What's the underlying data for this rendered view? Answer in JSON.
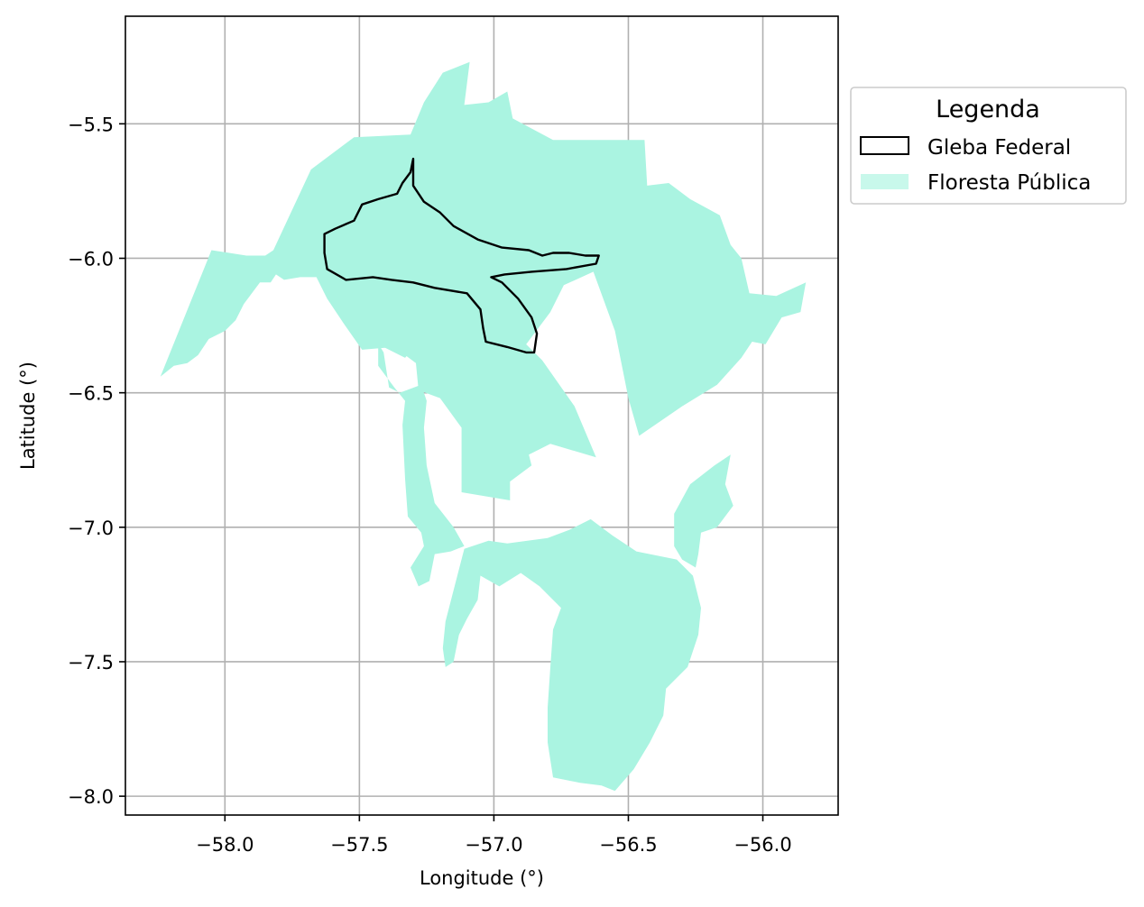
{
  "axes": {
    "xlabel": "Longitude (°)",
    "ylabel": "Latitude (°)",
    "xlim": [
      -58.37,
      -55.72
    ],
    "ylim": [
      -8.07,
      -5.1
    ],
    "xticks": [
      {
        "value": -58.0,
        "label": "−58.0"
      },
      {
        "value": -57.5,
        "label": "−57.5"
      },
      {
        "value": -57.0,
        "label": "−57.0"
      },
      {
        "value": -56.5,
        "label": "−56.5"
      },
      {
        "value": -56.0,
        "label": "−56.0"
      }
    ],
    "yticks": [
      {
        "value": -5.5,
        "label": "−5.5"
      },
      {
        "value": -6.0,
        "label": "−6.0"
      },
      {
        "value": -6.5,
        "label": "−6.5"
      },
      {
        "value": -7.0,
        "label": "−7.0"
      },
      {
        "value": -7.5,
        "label": "−7.5"
      },
      {
        "value": -8.0,
        "label": "−8.0"
      }
    ],
    "grid": true
  },
  "legend": {
    "title": "Legenda",
    "placement": "outside upper right",
    "items": [
      {
        "label": "Gleba Federal",
        "style": "outline",
        "color": "#000000"
      },
      {
        "label": "Floresta Pública",
        "style": "fill",
        "color": "#aaf4e1"
      }
    ]
  },
  "map_data": {
    "layers": [
      {
        "name": "Floresta Pública",
        "fill": "#aaf4e1",
        "polygons": [
          [
            [
              -58.24,
              -6.44
            ],
            [
              -58.05,
              -5.97
            ],
            [
              -57.92,
              -5.99
            ],
            [
              -57.85,
              -5.99
            ],
            [
              -57.82,
              -5.97
            ],
            [
              -57.68,
              -5.67
            ],
            [
              -57.52,
              -5.55
            ],
            [
              -57.31,
              -5.54
            ],
            [
              -57.26,
              -5.42
            ],
            [
              -57.19,
              -5.31
            ],
            [
              -57.09,
              -5.27
            ],
            [
              -57.11,
              -5.43
            ],
            [
              -57.02,
              -5.42
            ],
            [
              -56.95,
              -5.38
            ],
            [
              -56.93,
              -5.48
            ],
            [
              -56.78,
              -5.56
            ],
            [
              -56.44,
              -5.56
            ],
            [
              -56.43,
              -5.73
            ],
            [
              -56.35,
              -5.72
            ],
            [
              -56.27,
              -5.78
            ],
            [
              -56.16,
              -5.84
            ],
            [
              -56.12,
              -5.95
            ],
            [
              -56.08,
              -6.0
            ],
            [
              -56.05,
              -6.13
            ],
            [
              -55.95,
              -6.14
            ],
            [
              -55.84,
              -6.09
            ],
            [
              -55.86,
              -6.2
            ],
            [
              -55.93,
              -6.22
            ],
            [
              -55.99,
              -6.32
            ],
            [
              -56.04,
              -6.31
            ],
            [
              -56.08,
              -6.37
            ],
            [
              -56.17,
              -6.47
            ],
            [
              -56.3,
              -6.55
            ],
            [
              -56.46,
              -6.66
            ],
            [
              -56.5,
              -6.52
            ],
            [
              -56.55,
              -6.27
            ],
            [
              -56.63,
              -6.05
            ],
            [
              -56.74,
              -6.1
            ],
            [
              -56.79,
              -6.2
            ],
            [
              -56.88,
              -6.32
            ],
            [
              -56.82,
              -6.38
            ],
            [
              -56.7,
              -6.55
            ],
            [
              -56.62,
              -6.74
            ],
            [
              -56.79,
              -6.69
            ],
            [
              -56.87,
              -6.73
            ],
            [
              -56.86,
              -6.77
            ],
            [
              -56.94,
              -6.83
            ],
            [
              -56.94,
              -6.9
            ],
            [
              -57.12,
              -6.87
            ],
            [
              -57.12,
              -6.63
            ],
            [
              -57.2,
              -6.52
            ],
            [
              -57.28,
              -6.49
            ],
            [
              -57.29,
              -6.39
            ],
            [
              -57.37,
              -6.33
            ],
            [
              -57.49,
              -6.34
            ],
            [
              -57.56,
              -6.24
            ],
            [
              -57.62,
              -6.15
            ],
            [
              -57.66,
              -6.07
            ],
            [
              -57.72,
              -6.07
            ],
            [
              -57.78,
              -6.08
            ],
            [
              -57.81,
              -6.06
            ],
            [
              -57.83,
              -6.09
            ],
            [
              -57.87,
              -6.09
            ],
            [
              -57.93,
              -6.17
            ],
            [
              -57.96,
              -6.23
            ],
            [
              -58.0,
              -6.27
            ],
            [
              -58.06,
              -6.3
            ],
            [
              -58.1,
              -6.36
            ],
            [
              -58.14,
              -6.39
            ],
            [
              -58.19,
              -6.4
            ]
          ],
          [
            [
              -57.61,
              -6.11
            ],
            [
              -57.52,
              -6.16
            ],
            [
              -57.38,
              -6.19
            ],
            [
              -57.29,
              -6.22
            ],
            [
              -57.27,
              -6.3
            ],
            [
              -57.33,
              -6.37
            ],
            [
              -57.43,
              -6.32
            ],
            [
              -57.43,
              -6.4
            ],
            [
              -57.37,
              -6.48
            ],
            [
              -57.33,
              -6.53
            ],
            [
              -57.34,
              -6.62
            ],
            [
              -57.33,
              -6.82
            ],
            [
              -57.32,
              -6.96
            ],
            [
              -57.27,
              -7.02
            ],
            [
              -57.26,
              -7.07
            ],
            [
              -57.31,
              -7.15
            ],
            [
              -57.28,
              -7.22
            ],
            [
              -57.24,
              -7.2
            ],
            [
              -57.22,
              -7.1
            ],
            [
              -57.16,
              -7.09
            ],
            [
              -57.11,
              -7.07
            ],
            [
              -57.15,
              -7.0
            ],
            [
              -57.22,
              -6.91
            ],
            [
              -57.25,
              -6.77
            ],
            [
              -57.26,
              -6.63
            ],
            [
              -57.25,
              -6.53
            ],
            [
              -57.27,
              -6.47
            ],
            [
              -57.35,
              -6.5
            ],
            [
              -57.39,
              -6.48
            ],
            [
              -57.41,
              -6.35
            ],
            [
              -57.44,
              -6.3
            ],
            [
              -57.5,
              -6.27
            ],
            [
              -57.55,
              -6.23
            ],
            [
              -57.58,
              -6.16
            ]
          ],
          [
            [
              -57.11,
              -7.08
            ],
            [
              -57.02,
              -7.05
            ],
            [
              -56.95,
              -7.06
            ],
            [
              -56.8,
              -7.04
            ],
            [
              -56.72,
              -7.01
            ],
            [
              -56.64,
              -6.97
            ],
            [
              -56.56,
              -7.03
            ],
            [
              -56.47,
              -7.09
            ],
            [
              -56.32,
              -7.12
            ],
            [
              -56.26,
              -7.18
            ],
            [
              -56.23,
              -7.3
            ],
            [
              -56.24,
              -7.4
            ],
            [
              -56.28,
              -7.52
            ],
            [
              -56.36,
              -7.6
            ],
            [
              -56.37,
              -7.7
            ],
            [
              -56.42,
              -7.8
            ],
            [
              -56.48,
              -7.9
            ],
            [
              -56.55,
              -7.98
            ],
            [
              -56.6,
              -7.96
            ],
            [
              -56.68,
              -7.95
            ],
            [
              -56.78,
              -7.93
            ],
            [
              -56.8,
              -7.8
            ],
            [
              -56.8,
              -7.67
            ],
            [
              -56.79,
              -7.52
            ],
            [
              -56.78,
              -7.38
            ],
            [
              -56.75,
              -7.3
            ],
            [
              -56.83,
              -7.22
            ],
            [
              -56.9,
              -7.17
            ],
            [
              -56.98,
              -7.22
            ],
            [
              -57.05,
              -7.18
            ],
            [
              -57.06,
              -7.27
            ],
            [
              -57.1,
              -7.34
            ],
            [
              -57.13,
              -7.4
            ],
            [
              -57.15,
              -7.5
            ],
            [
              -57.18,
              -7.52
            ],
            [
              -57.19,
              -7.45
            ],
            [
              -57.18,
              -7.35
            ]
          ],
          [
            [
              -56.33,
              -6.95
            ],
            [
              -56.27,
              -6.84
            ],
            [
              -56.18,
              -6.77
            ],
            [
              -56.12,
              -6.73
            ],
            [
              -56.14,
              -6.84
            ],
            [
              -56.11,
              -6.92
            ],
            [
              -56.17,
              -7.0
            ],
            [
              -56.23,
              -7.02
            ],
            [
              -56.24,
              -7.1
            ],
            [
              -56.25,
              -7.15
            ],
            [
              -56.3,
              -7.12
            ],
            [
              -56.33,
              -7.07
            ]
          ]
        ]
      },
      {
        "name": "Gleba Federal",
        "stroke": "#000000",
        "polygons": [
          [
            [
              -57.3,
              -5.63
            ],
            [
              -57.31,
              -5.68
            ],
            [
              -57.34,
              -5.72
            ],
            [
              -57.36,
              -5.76
            ],
            [
              -57.43,
              -5.78
            ],
            [
              -57.49,
              -5.8
            ],
            [
              -57.52,
              -5.86
            ],
            [
              -57.59,
              -5.89
            ],
            [
              -57.63,
              -5.91
            ],
            [
              -57.63,
              -5.98
            ],
            [
              -57.62,
              -6.04
            ],
            [
              -57.55,
              -6.08
            ],
            [
              -57.45,
              -6.07
            ],
            [
              -57.38,
              -6.08
            ],
            [
              -57.3,
              -6.09
            ],
            [
              -57.22,
              -6.11
            ],
            [
              -57.1,
              -6.13
            ],
            [
              -57.05,
              -6.19
            ],
            [
              -57.04,
              -6.26
            ],
            [
              -57.03,
              -6.31
            ],
            [
              -56.95,
              -6.33
            ],
            [
              -56.88,
              -6.35
            ],
            [
              -56.85,
              -6.35
            ],
            [
              -56.84,
              -6.28
            ],
            [
              -56.86,
              -6.22
            ],
            [
              -56.91,
              -6.15
            ],
            [
              -56.97,
              -6.09
            ],
            [
              -57.01,
              -6.07
            ],
            [
              -56.96,
              -6.06
            ],
            [
              -56.86,
              -6.05
            ],
            [
              -56.73,
              -6.04
            ],
            [
              -56.62,
              -6.02
            ],
            [
              -56.61,
              -5.99
            ],
            [
              -56.66,
              -5.99
            ],
            [
              -56.72,
              -5.98
            ],
            [
              -56.78,
              -5.98
            ],
            [
              -56.82,
              -5.99
            ],
            [
              -56.87,
              -5.97
            ],
            [
              -56.97,
              -5.96
            ],
            [
              -57.06,
              -5.93
            ],
            [
              -57.15,
              -5.88
            ],
            [
              -57.2,
              -5.83
            ],
            [
              -57.26,
              -5.79
            ],
            [
              -57.3,
              -5.73
            ]
          ]
        ]
      }
    ]
  }
}
